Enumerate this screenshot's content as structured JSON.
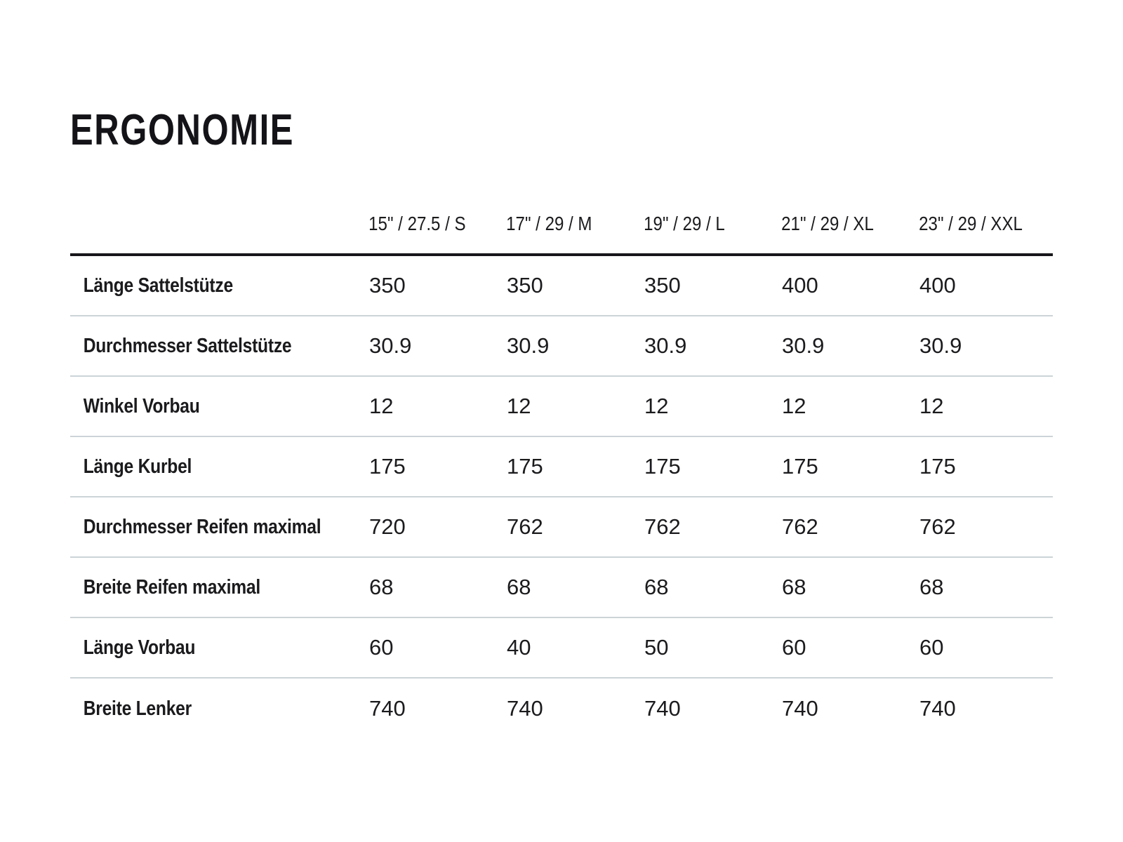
{
  "page": {
    "title": "ERGONOMIE"
  },
  "chart_data": {
    "type": "table",
    "title": "ERGONOMIE",
    "columns": [
      "15\" / 27.5 / S",
      "17\" / 29 / M",
      "19\" / 29 / L",
      "21\" / 29 / XL",
      "23\" / 29 / XXL"
    ],
    "rows": [
      {
        "label": "Länge Sattelstütze",
        "values": [
          "350",
          "350",
          "350",
          "400",
          "400"
        ]
      },
      {
        "label": "Durchmesser Sattelstütze",
        "values": [
          "30.9",
          "30.9",
          "30.9",
          "30.9",
          "30.9"
        ]
      },
      {
        "label": "Winkel Vorbau",
        "values": [
          "12",
          "12",
          "12",
          "12",
          "12"
        ]
      },
      {
        "label": "Länge Kurbel",
        "values": [
          "175",
          "175",
          "175",
          "175",
          "175"
        ]
      },
      {
        "label": "Durchmesser Reifen maximal",
        "values": [
          "720",
          "762",
          "762",
          "762",
          "762"
        ]
      },
      {
        "label": "Breite Reifen maximal",
        "values": [
          "68",
          "68",
          "68",
          "68",
          "68"
        ]
      },
      {
        "label": "Länge Vorbau",
        "values": [
          "60",
          "40",
          "50",
          "60",
          "60"
        ]
      },
      {
        "label": "Breite Lenker",
        "values": [
          "740",
          "740",
          "740",
          "740",
          "740"
        ]
      }
    ],
    "layout": {
      "header_rule": "thick-black-below-header",
      "row_dividers": "thin-light-gray",
      "value_alignment": "left"
    }
  },
  "colors": {
    "background": "#ffffff",
    "text": "#1b1b1e",
    "header_rule": "#17171b",
    "row_divider": "#ccd4d8"
  }
}
